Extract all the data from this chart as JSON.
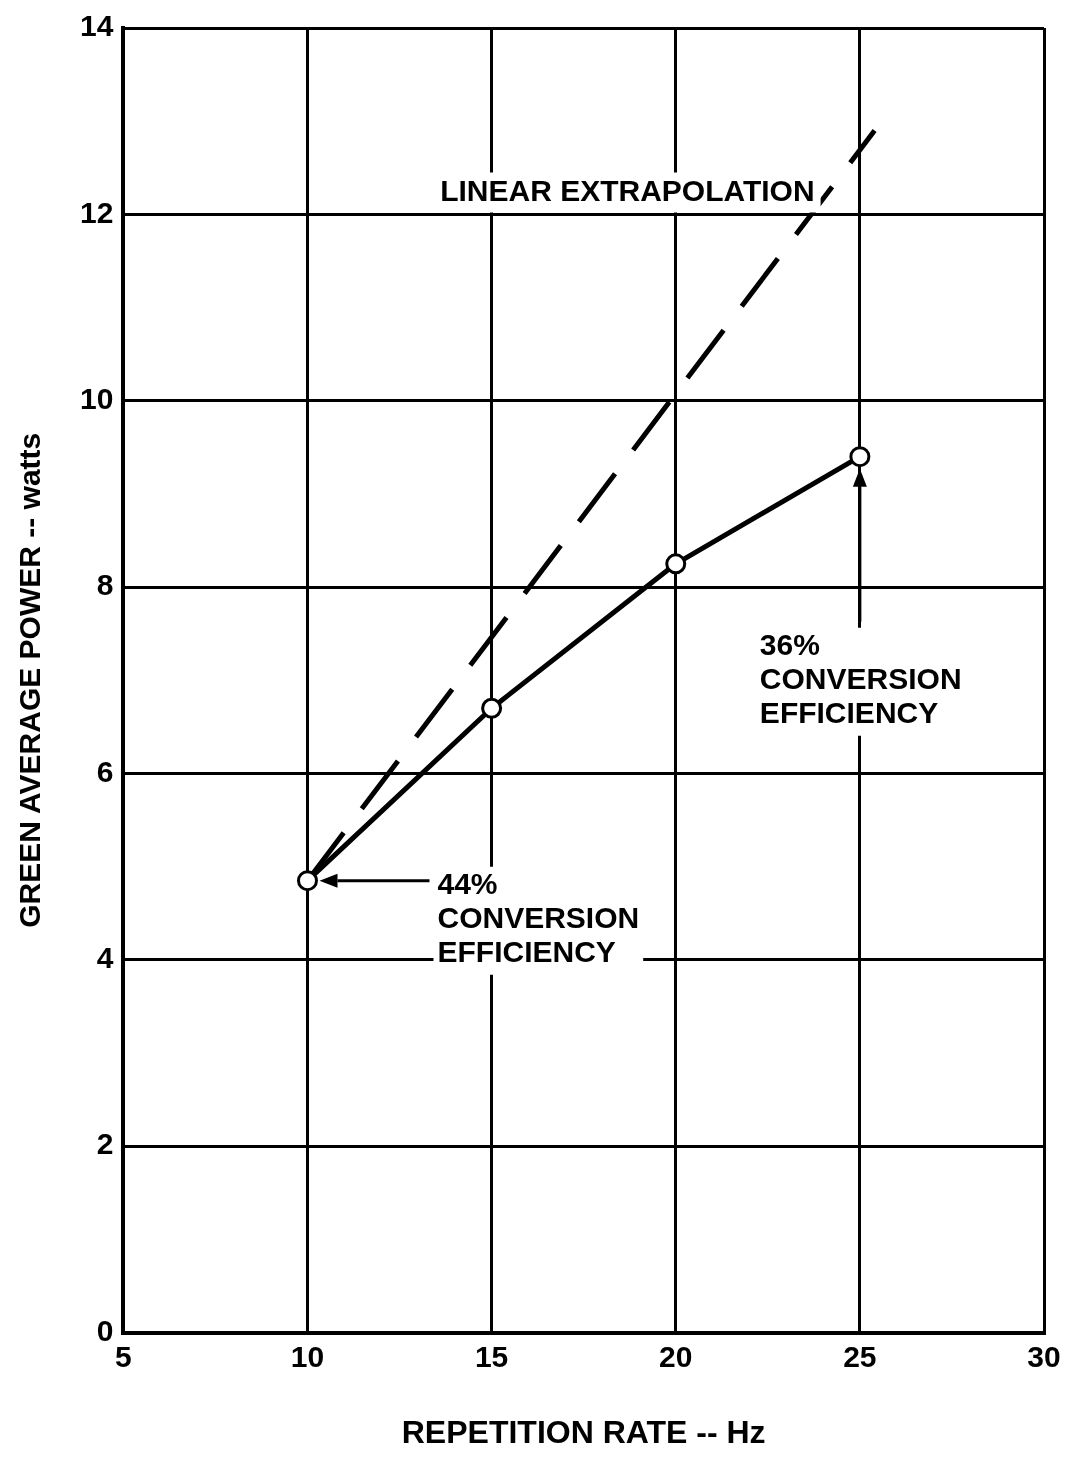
{
  "chart_data": {
    "type": "line",
    "xlabel": "REPETITION RATE -- Hz",
    "ylabel": "GREEN AVERAGE POWER -- watts",
    "x": [
      10,
      15,
      20,
      25
    ],
    "series": [
      {
        "color": "#000000",
        "values": [
          4.85,
          6.7,
          8.25,
          9.4
        ],
        "marker": "circle",
        "line_style": "solid"
      },
      {
        "name": "LINEAR EXTRAPOLATION",
        "color": "#000000",
        "x": [
          10,
          25.4
        ],
        "values": [
          4.85,
          12.9
        ],
        "marker": "none",
        "line_style": "dashed"
      }
    ],
    "xlim": [
      5,
      30
    ],
    "xticks": [
      5,
      10,
      15,
      20,
      25,
      30
    ],
    "ylim": [
      0,
      14
    ],
    "yticks": [
      0,
      2,
      4,
      6,
      8,
      10,
      12,
      14
    ],
    "grid": true,
    "legend": false,
    "annotations": [
      "44%\nCONVERSION\nEFFICIENCY",
      "36%\nCONVERSION\nEFFICIENCY"
    ]
  }
}
